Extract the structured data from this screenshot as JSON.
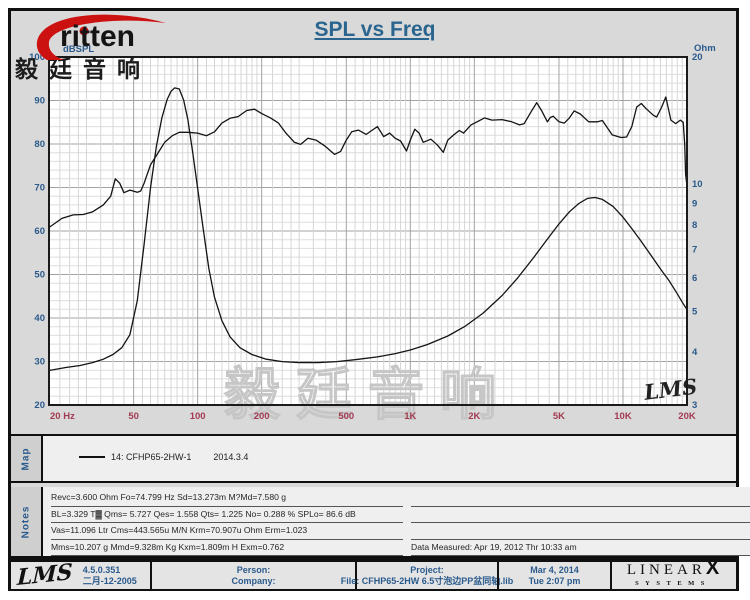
{
  "header": {
    "logo_text": "ritten",
    "logo_cn": "毅廷音响",
    "title": "SPL vs Freq"
  },
  "colors": {
    "accent_blue": "#2a5a8c",
    "title_blue": "#2a6590",
    "freq_red": "#a23a50",
    "logo_red": "#cc1111",
    "curve_black": "#141414"
  },
  "chart": {
    "watermark": "毅廷音响",
    "corner_script": "LMS"
  },
  "chart_data": {
    "type": "line",
    "title": "SPL vs Freq",
    "grid": true,
    "x_axis": {
      "label": "Hz",
      "scale": "log",
      "min": 20,
      "max": 20000,
      "tick_labels": [
        "20 Hz",
        "50",
        "100",
        "200",
        "500",
        "1K",
        "2K",
        "5K",
        "10K",
        "20K"
      ],
      "tick_values": [
        20,
        50,
        100,
        200,
        500,
        1000,
        2000,
        5000,
        10000,
        20000
      ]
    },
    "y_left": {
      "label": "dBSPL",
      "scale": "linear",
      "min": 20,
      "max": 100,
      "ticks": [
        100,
        90,
        80,
        70,
        60,
        50,
        40,
        30,
        20
      ]
    },
    "y_right": {
      "label": "Ohm",
      "scale": "log",
      "min": 3,
      "max": 20,
      "ticks": [
        20,
        10,
        9,
        8,
        7,
        6,
        5,
        4,
        3
      ]
    },
    "series": [
      {
        "name": "SPL response 14: CFHP65-2HW-1",
        "axis": "left",
        "points": [
          [
            20,
            60.8
          ],
          [
            23,
            62.9
          ],
          [
            26,
            63.7
          ],
          [
            29,
            63.8
          ],
          [
            32,
            64.4
          ],
          [
            36,
            66
          ],
          [
            39,
            68
          ],
          [
            41,
            72
          ],
          [
            43,
            71
          ],
          [
            45,
            68.8
          ],
          [
            48,
            69.4
          ],
          [
            52,
            68.9
          ],
          [
            54,
            69.2
          ],
          [
            56,
            71
          ],
          [
            60,
            75.2
          ],
          [
            65,
            77.9
          ],
          [
            70,
            80.4
          ],
          [
            76,
            81.9
          ],
          [
            82,
            82.7
          ],
          [
            90,
            82.7
          ],
          [
            100,
            82.5
          ],
          [
            110,
            81.9
          ],
          [
            120,
            82.8
          ],
          [
            130,
            84.8
          ],
          [
            142,
            85.9
          ],
          [
            155,
            86.3
          ],
          [
            170,
            87.7
          ],
          [
            185,
            88
          ],
          [
            200,
            87
          ],
          [
            220,
            86
          ],
          [
            240,
            84.8
          ],
          [
            260,
            82.5
          ],
          [
            285,
            80.4
          ],
          [
            305,
            79.9
          ],
          [
            330,
            81.3
          ],
          [
            360,
            80.9
          ],
          [
            400,
            79.4
          ],
          [
            440,
            77.6
          ],
          [
            470,
            78.3
          ],
          [
            500,
            80.9
          ],
          [
            530,
            82.8
          ],
          [
            570,
            83.2
          ],
          [
            620,
            82.2
          ],
          [
            655,
            83
          ],
          [
            700,
            84
          ],
          [
            750,
            81.7
          ],
          [
            800,
            82.5
          ],
          [
            850,
            81.3
          ],
          [
            900,
            80.7
          ],
          [
            960,
            78.4
          ],
          [
            1000,
            80.9
          ],
          [
            1050,
            83.4
          ],
          [
            1100,
            82.5
          ],
          [
            1150,
            80.4
          ],
          [
            1250,
            81.1
          ],
          [
            1350,
            79.6
          ],
          [
            1430,
            78.1
          ],
          [
            1500,
            80.9
          ],
          [
            1600,
            82.1
          ],
          [
            1700,
            83.1
          ],
          [
            1780,
            82.5
          ],
          [
            1930,
            84.4
          ],
          [
            2100,
            85.3
          ],
          [
            2230,
            86
          ],
          [
            2420,
            85.5
          ],
          [
            2700,
            85.6
          ],
          [
            3000,
            85.1
          ],
          [
            3260,
            84.4
          ],
          [
            3430,
            84.7
          ],
          [
            3740,
            87.8
          ],
          [
            3930,
            89.5
          ],
          [
            4130,
            87.8
          ],
          [
            4410,
            85.1
          ],
          [
            4550,
            86.1
          ],
          [
            4700,
            86.4
          ],
          [
            5000,
            85.1
          ],
          [
            5300,
            84.8
          ],
          [
            5600,
            86
          ],
          [
            5900,
            87.6
          ],
          [
            6300,
            86.9
          ],
          [
            6900,
            85.1
          ],
          [
            7600,
            85.1
          ],
          [
            8000,
            85.4
          ],
          [
            8900,
            82.1
          ],
          [
            9800,
            81.5
          ],
          [
            10400,
            81.6
          ],
          [
            11000,
            84
          ],
          [
            11600,
            88.5
          ],
          [
            12200,
            89.3
          ],
          [
            12800,
            88.2
          ],
          [
            13900,
            86.6
          ],
          [
            14400,
            86.2
          ],
          [
            15200,
            88.5
          ],
          [
            15900,
            90.8
          ],
          [
            16800,
            85.5
          ],
          [
            17700,
            84.7
          ],
          [
            18600,
            85.5
          ],
          [
            19200,
            85
          ],
          [
            19500,
            80
          ],
          [
            19700,
            73
          ],
          [
            20000,
            70.4
          ]
        ]
      },
      {
        "name": "Impedance 14: CFHP65-2HW-1",
        "axis": "right",
        "points": [
          [
            20,
            3.62
          ],
          [
            24,
            3.68
          ],
          [
            28,
            3.72
          ],
          [
            32,
            3.78
          ],
          [
            36,
            3.85
          ],
          [
            40,
            3.95
          ],
          [
            44,
            4.1
          ],
          [
            48,
            4.4
          ],
          [
            52,
            5.3
          ],
          [
            56,
            7.2
          ],
          [
            60,
            9.8
          ],
          [
            64,
            12.3
          ],
          [
            68,
            14.4
          ],
          [
            72,
            15.9
          ],
          [
            75,
            16.6
          ],
          [
            78,
            16.9
          ],
          [
            82,
            16.8
          ],
          [
            86,
            15.8
          ],
          [
            90,
            14.2
          ],
          [
            95,
            11.8
          ],
          [
            100,
            9.8
          ],
          [
            106,
            7.9
          ],
          [
            113,
            6.3
          ],
          [
            120,
            5.4
          ],
          [
            130,
            4.75
          ],
          [
            142,
            4.35
          ],
          [
            158,
            4.1
          ],
          [
            180,
            3.95
          ],
          [
            210,
            3.85
          ],
          [
            250,
            3.8
          ],
          [
            300,
            3.78
          ],
          [
            370,
            3.78
          ],
          [
            450,
            3.8
          ],
          [
            550,
            3.84
          ],
          [
            700,
            3.9
          ],
          [
            850,
            3.97
          ],
          [
            1000,
            4.05
          ],
          [
            1200,
            4.17
          ],
          [
            1500,
            4.37
          ],
          [
            1800,
            4.6
          ],
          [
            2200,
            4.95
          ],
          [
            2700,
            5.45
          ],
          [
            3200,
            6
          ],
          [
            3800,
            6.7
          ],
          [
            4400,
            7.4
          ],
          [
            5000,
            8.05
          ],
          [
            5600,
            8.6
          ],
          [
            6200,
            9
          ],
          [
            6800,
            9.25
          ],
          [
            7400,
            9.3
          ],
          [
            8000,
            9.2
          ],
          [
            9000,
            8.85
          ],
          [
            10000,
            8.35
          ],
          [
            11000,
            7.85
          ],
          [
            12000,
            7.4
          ],
          [
            13500,
            6.8
          ],
          [
            15000,
            6.3
          ],
          [
            16500,
            5.9
          ],
          [
            18000,
            5.5
          ],
          [
            19000,
            5.25
          ],
          [
            20000,
            5.05
          ]
        ]
      }
    ]
  },
  "map": {
    "label": "Map",
    "legend": {
      "text": "14: CFHP65-2HW-1",
      "date": "2014.3.4"
    }
  },
  "notes": {
    "label": "Notes",
    "left_lines": [
      "Revc=3.600 Ohm  Fo=74.799 Hz  Sd=13.273m M?Md=7.580 g",
      "BL=3.329 T▓  Qms= 5.727  Qes= 1.558  Qts= 1.225  No= 0.288 %  SPLo= 86.6 dB",
      "Vas=11.096 Ltr  Cms=443.565u M/N  Krm=70.907u Ohm  Erm=1.023",
      "Mms=10.207 g  Mmd=9.328m Kg  Kxm=1.809m H  Exm=0.762"
    ],
    "right_lines": [
      "",
      "",
      "",
      "Data Measured: Apr 19, 2012  Thr 10:33 am"
    ]
  },
  "footer": {
    "lms_script": "LMS",
    "version": "4.5.0.351",
    "version_date": "二月-12-2005",
    "person": "Person:",
    "company": "Company:",
    "project": "Project:",
    "file": "File: CFHP65-2HW 6.5寸泡边PP盆同轴.lib",
    "date": "Mar  4, 2014",
    "time": "Tue  2:07 pm",
    "brand_linear": "LINEAR",
    "brand_x": "X",
    "brand_systems": "SYSTEMS"
  }
}
